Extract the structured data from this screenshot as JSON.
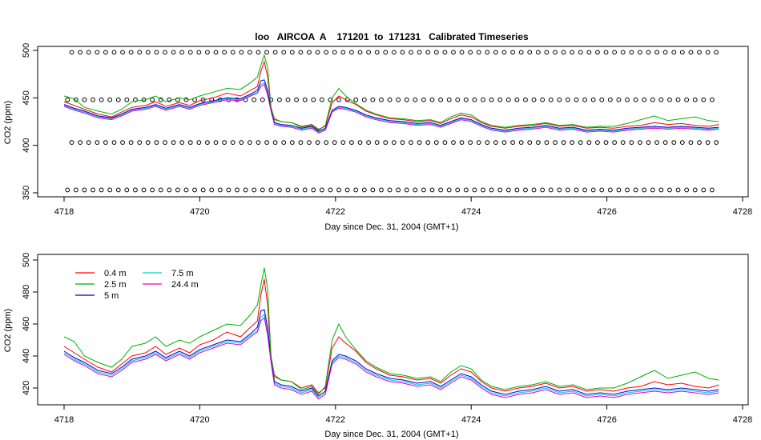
{
  "chart_data": [
    {
      "type": "line",
      "title": "loo   AIRCOA  A    171201  to  171231   Calibrated Timeseries",
      "xlabel": "Day since Dec. 31, 2004 (GMT+1)",
      "ylabel": "CO2 (ppm)",
      "xlim": [
        4718,
        4728
      ],
      "ylim": [
        350,
        500
      ],
      "x_ticks": [
        "4718",
        "4720",
        "4722",
        "4724",
        "4726",
        "4728"
      ],
      "y_ticks": [
        "350",
        "400",
        "450",
        "500"
      ],
      "x_tick_values": [
        4718,
        4720,
        4722,
        4724,
        4726,
        4728
      ],
      "y_tick_values": [
        350,
        400,
        450,
        500
      ],
      "calibration_levels": [
        353,
        403,
        448,
        498
      ],
      "calibration_x_start": 4718.05,
      "calibration_x_end": 4727.65,
      "calibration_step": 0.125
    },
    {
      "type": "line",
      "title": "",
      "xlabel": "Day since Dec. 31, 2004 (GMT+1)",
      "ylabel": "CO2 (ppm)",
      "xlim": [
        4718,
        4728
      ],
      "ylim": [
        411,
        502
      ],
      "x_ticks": [
        "4718",
        "4720",
        "4722",
        "4724",
        "4726",
        "4728"
      ],
      "y_ticks": [
        "420",
        "440",
        "460",
        "480",
        "500"
      ],
      "x_tick_values": [
        4718,
        4720,
        4722,
        4724,
        4726,
        4728
      ],
      "y_tick_values": [
        420,
        440,
        460,
        480,
        500
      ],
      "legend_position": "top-left",
      "x": [
        4718.0,
        4718.15,
        4718.3,
        4718.5,
        4718.7,
        4718.85,
        4719.0,
        4719.2,
        4719.35,
        4719.5,
        4719.7,
        4719.85,
        4720.0,
        4720.2,
        4720.4,
        4720.6,
        4720.75,
        4720.85,
        4720.9,
        4720.95,
        4721.0,
        4721.05,
        4721.1,
        4721.2,
        4721.35,
        4721.5,
        4721.65,
        4721.75,
        4721.85,
        4721.95,
        4722.05,
        4722.15,
        4722.3,
        4722.45,
        4722.6,
        4722.8,
        4723.0,
        4723.2,
        4723.4,
        4723.55,
        4723.7,
        4723.85,
        4724.0,
        4724.15,
        4724.3,
        4724.5,
        4724.7,
        4724.9,
        4725.1,
        4725.3,
        4725.5,
        4725.7,
        4725.9,
        4726.1,
        4726.3,
        4726.5,
        4726.7,
        4726.9,
        4727.1,
        4727.3,
        4727.5,
        4727.65
      ],
      "series": [
        {
          "name": "0.4 m",
          "color": "#ff0000",
          "values": [
            446,
            442,
            438,
            433,
            430,
            435,
            440,
            442,
            446,
            441,
            445,
            442,
            447,
            450,
            455,
            452,
            458,
            462,
            478,
            488,
            472,
            440,
            428,
            425,
            424,
            420,
            422,
            417,
            420,
            445,
            452,
            448,
            443,
            436,
            432,
            428,
            427,
            425,
            426,
            423,
            428,
            432,
            430,
            424,
            420,
            418,
            420,
            421,
            423,
            420,
            421,
            418,
            419,
            418,
            420,
            421,
            424,
            422,
            423,
            421,
            420,
            422
          ]
        },
        {
          "name": "2.5 m",
          "color": "#00b000",
          "values": [
            452,
            449,
            440,
            436,
            433,
            438,
            446,
            448,
            452,
            446,
            450,
            448,
            452,
            456,
            460,
            459,
            466,
            472,
            484,
            495,
            482,
            440,
            427,
            425,
            424,
            419,
            421,
            416,
            421,
            450,
            460,
            452,
            444,
            437,
            433,
            429,
            428,
            426,
            427,
            424,
            430,
            434,
            432,
            425,
            421,
            419,
            421,
            422,
            424,
            421,
            422,
            419,
            420,
            420,
            423,
            427,
            431,
            426,
            428,
            430,
            426,
            425
          ]
        },
        {
          "name": "5 m",
          "color": "#0000cc",
          "values": [
            443,
            439,
            436,
            431,
            429,
            433,
            438,
            440,
            443,
            439,
            443,
            440,
            444,
            447,
            450,
            449,
            454,
            458,
            468,
            469,
            458,
            438,
            424,
            422,
            421,
            418,
            420,
            415,
            418,
            437,
            441,
            440,
            437,
            432,
            429,
            426,
            425,
            423,
            424,
            421,
            425,
            429,
            427,
            422,
            418,
            416,
            418,
            419,
            421,
            418,
            419,
            416,
            417,
            416,
            418,
            419,
            420,
            419,
            420,
            419,
            418,
            419
          ]
        },
        {
          "name": "7.5 m",
          "color": "#00d0d0",
          "values": [
            442,
            438,
            435,
            430,
            428,
            432,
            437,
            439,
            442,
            438,
            442,
            439,
            443,
            446,
            449,
            448,
            453,
            456,
            464,
            466,
            455,
            437,
            423,
            421,
            420,
            417,
            419,
            414,
            417,
            436,
            440,
            439,
            436,
            431,
            428,
            425,
            424,
            422,
            423,
            420,
            424,
            428,
            426,
            421,
            417,
            415,
            417,
            418,
            420,
            417,
            418,
            415,
            416,
            415,
            417,
            418,
            419,
            418,
            419,
            418,
            417,
            418
          ]
        },
        {
          "name": "24.4 m",
          "color": "#dd00dd",
          "values": [
            441,
            437,
            434,
            429,
            427,
            431,
            436,
            438,
            441,
            437,
            441,
            438,
            442,
            445,
            448,
            447,
            452,
            455,
            462,
            464,
            453,
            436,
            422,
            420,
            419,
            416,
            418,
            413,
            416,
            435,
            439,
            438,
            435,
            430,
            427,
            424,
            423,
            421,
            422,
            419,
            423,
            427,
            425,
            420,
            416,
            414,
            416,
            417,
            419,
            416,
            417,
            414,
            415,
            414,
            416,
            417,
            418,
            417,
            418,
            417,
            416,
            417
          ]
        }
      ]
    }
  ]
}
